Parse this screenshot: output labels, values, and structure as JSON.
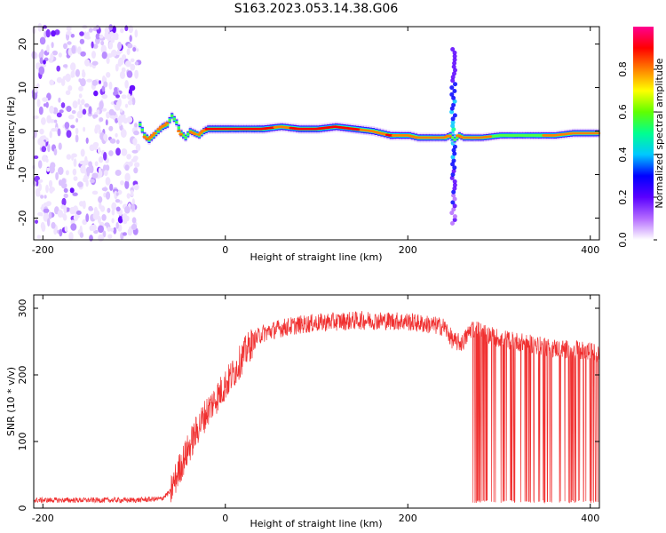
{
  "title": "S163.2023.053.14.38.G06",
  "chart_data": [
    {
      "type": "heatmap",
      "xlabel": "Height of straight line (km)",
      "ylabel": "Frequency (Hz)",
      "xlim": [
        -210,
        410
      ],
      "ylim": [
        -25,
        24
      ],
      "x_ticks": [
        -200,
        0,
        200,
        400
      ],
      "y_ticks": [
        20,
        10,
        0,
        -10,
        -20
      ],
      "colorbar": {
        "label": "Normalized spectral amplitude",
        "range": [
          0,
          1
        ],
        "ticks": [
          "0.0",
          "0.2",
          "0.4",
          "0.6",
          "0.8"
        ],
        "tick_values": [
          0.0,
          0.2,
          0.4,
          0.6,
          0.8
        ],
        "colormap": [
          "#ffffff",
          "#b46bff",
          "#5a00ff",
          "#0000ff",
          "#00c8ff",
          "#00ff90",
          "#60ff00",
          "#ffff00",
          "#ff8000",
          "#ff0000",
          "#ff0090"
        ]
      },
      "noise_region_x": [
        -210,
        -95
      ],
      "spike_event": {
        "x": 250,
        "freq_range": [
          -22,
          19
        ]
      },
      "ridge": {
        "x": [
          -95,
          -90,
          -85,
          -80,
          -75,
          -70,
          -65,
          -60,
          -55,
          -50,
          -45,
          -40,
          -35,
          -30,
          -25,
          -20,
          0,
          20,
          40,
          60,
          80,
          100,
          120,
          140,
          160,
          170,
          180,
          190,
          200,
          210,
          220,
          230,
          240,
          245,
          250,
          255,
          260,
          280,
          300,
          320,
          340,
          360,
          380,
          400,
          410
        ],
        "frequency": [
          1.5,
          -1,
          -2,
          -1,
          0,
          1,
          1.5,
          3.5,
          2,
          -0.5,
          -1.5,
          0,
          -0.5,
          -1,
          0,
          0.5,
          0.5,
          0.5,
          0.5,
          1,
          0.5,
          0.5,
          1,
          0.5,
          0,
          -0.5,
          -1,
          -1,
          -1,
          -1.5,
          -1.5,
          -1.5,
          -1.5,
          -1,
          -2,
          -1,
          -1.5,
          -1.5,
          -1,
          -1,
          -1,
          -1,
          -0.5,
          -0.5,
          -0.5
        ],
        "amplitude": [
          0.6,
          0.7,
          0.85,
          0.75,
          0.7,
          0.8,
          0.8,
          0.6,
          0.7,
          0.75,
          0.7,
          0.7,
          0.75,
          0.7,
          0.8,
          0.95,
          0.95,
          0.9,
          0.95,
          0.85,
          0.9,
          0.9,
          0.9,
          0.9,
          0.85,
          0.85,
          0.9,
          0.85,
          0.85,
          0.85,
          0.85,
          0.8,
          0.85,
          0.8,
          0.6,
          0.75,
          0.8,
          0.75,
          0.7,
          0.65,
          0.7,
          0.75,
          0.8,
          0.8,
          0.75
        ]
      }
    },
    {
      "type": "line",
      "xlabel": "Height of straight line (km)",
      "ylabel": "SNR (10 * v/v)",
      "xlim": [
        -210,
        410
      ],
      "ylim": [
        0,
        320
      ],
      "x_ticks": [
        -200,
        0,
        200,
        400
      ],
      "y_ticks": [
        0,
        100,
        200,
        300
      ],
      "color": "#f03030",
      "envelope": {
        "x": [
          -210,
          -150,
          -100,
          -70,
          -60,
          -50,
          -40,
          -30,
          -20,
          -10,
          0,
          10,
          20,
          30,
          40,
          60,
          80,
          100,
          120,
          150,
          180,
          200,
          220,
          240,
          250,
          260,
          270,
          280,
          300,
          320,
          340,
          360,
          380,
          400,
          410
        ],
        "snr": [
          12,
          12,
          12,
          14,
          25,
          60,
          90,
          120,
          145,
          165,
          185,
          205,
          230,
          250,
          262,
          270,
          275,
          278,
          280,
          282,
          281,
          280,
          276,
          272,
          250,
          248,
          270,
          265,
          255,
          250,
          245,
          240,
          238,
          235,
          232
        ]
      },
      "dropout_region_x": [
        270,
        410
      ],
      "dropout_level": 8
    }
  ]
}
